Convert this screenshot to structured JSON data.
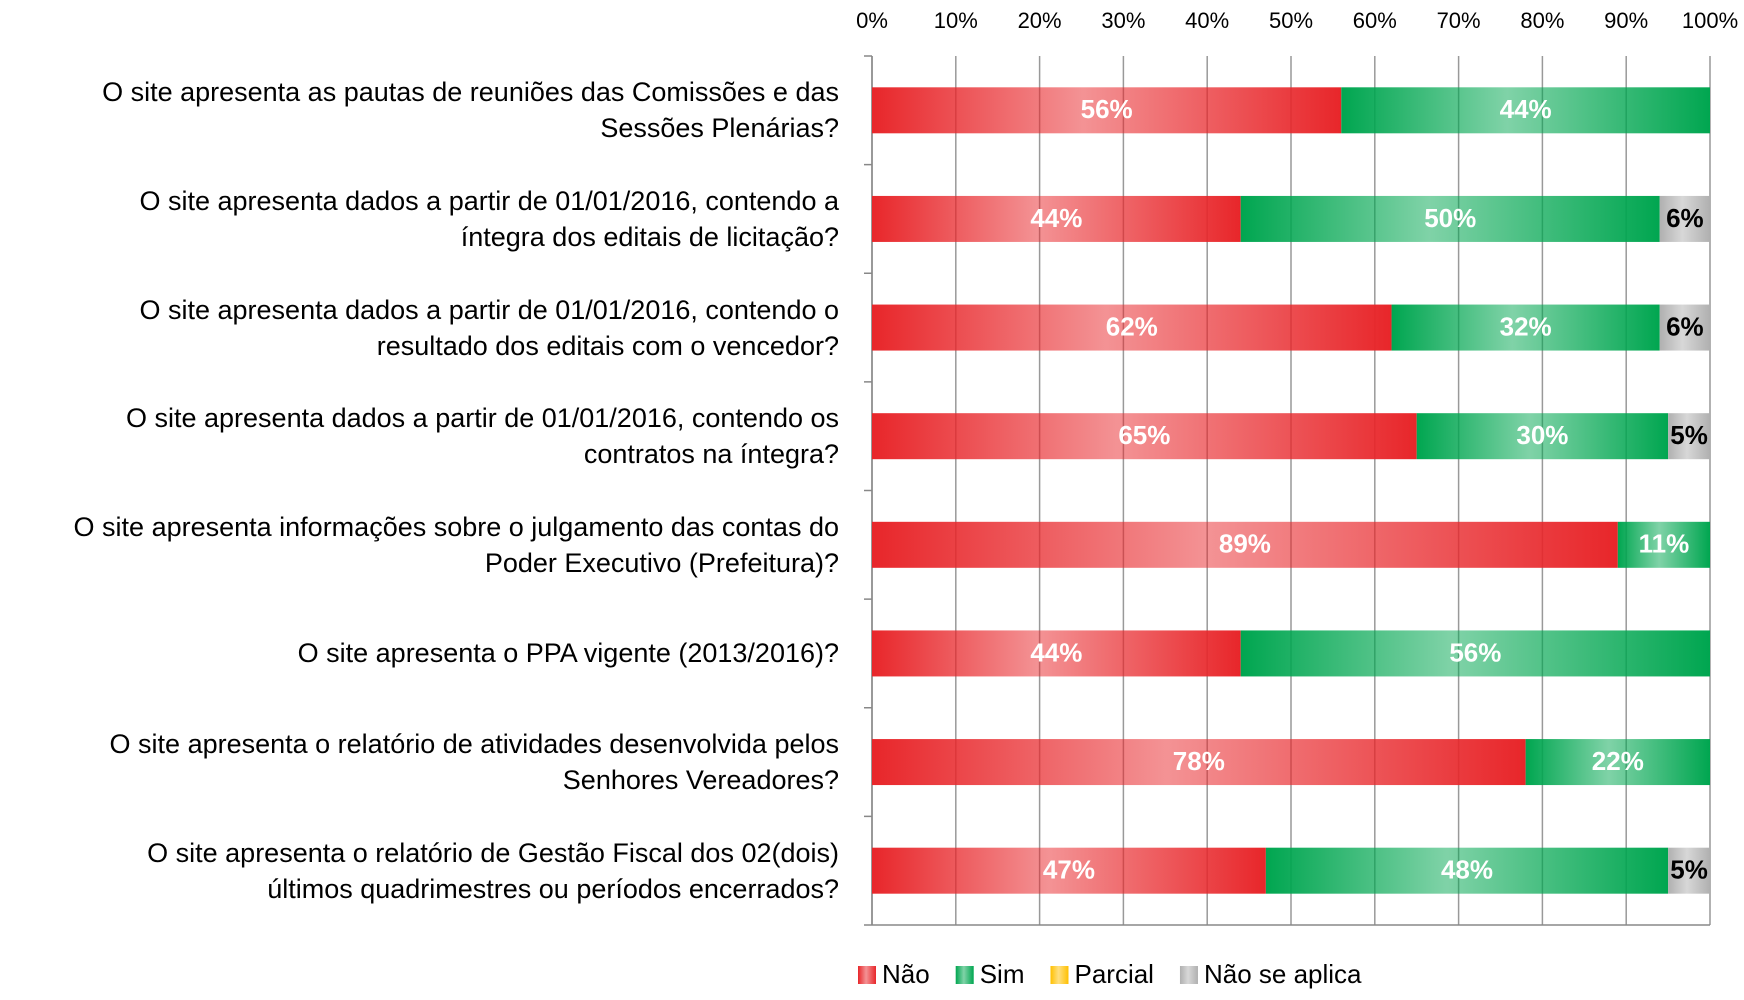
{
  "chart_data": {
    "type": "stacked-bar-horizontal",
    "categories": [
      "O site apresenta as pautas de reuniões das Comissões e das\nSessões Plenárias?",
      "O site apresenta dados a partir de 01/01/2016, contendo a\níntegra dos editais de licitação?",
      "O site apresenta dados a partir de 01/01/2016, contendo o\nresultado dos editais com o vencedor?",
      "O site apresenta dados a partir de 01/01/2016, contendo os\ncontratos na íntegra?",
      "O site apresenta informações sobre o julgamento das contas do\nPoder Executivo (Prefeitura)?",
      "O site apresenta o PPA vigente (2013/2016)?",
      "O site apresenta o relatório de atividades desenvolvida pelos\nSenhores Vereadores?",
      "O site apresenta o relatório de Gestão Fiscal dos 02(dois)\núltimos quadrimestres ou períodos encerrados?"
    ],
    "series": [
      {
        "name": "Não",
        "color": "#e8262a",
        "values": [
          56,
          44,
          62,
          65,
          89,
          44,
          78,
          47
        ],
        "value_labels": [
          "56%",
          "44%",
          "62%",
          "65%",
          "89%",
          "44%",
          "78%",
          "47%"
        ]
      },
      {
        "name": "Sim",
        "color": "#00a650",
        "values": [
          44,
          50,
          32,
          30,
          11,
          56,
          22,
          48
        ],
        "value_labels": [
          "44%",
          "50%",
          "32%",
          "30%",
          "11%",
          "56%",
          "22%",
          "48%"
        ]
      },
      {
        "name": "Parcial",
        "color": "#ffc000",
        "values": [
          0,
          0,
          0,
          0,
          0,
          0,
          0,
          0
        ],
        "value_labels": [
          null,
          null,
          null,
          null,
          null,
          null,
          null,
          null
        ]
      },
      {
        "name": "Não se aplica",
        "color": "#b0b0b0",
        "values": [
          0,
          6,
          6,
          5,
          0,
          0,
          0,
          5
        ],
        "value_labels": [
          null,
          "6%",
          "6%",
          "5%",
          null,
          null,
          null,
          "5%"
        ]
      }
    ],
    "xlim": [
      0,
      100
    ],
    "xticks": [
      {
        "value": 0,
        "label": "0%"
      },
      {
        "value": 10,
        "label": "10%"
      },
      {
        "value": 20,
        "label": "20%"
      },
      {
        "value": 30,
        "label": "30%"
      },
      {
        "value": 40,
        "label": "40%"
      },
      {
        "value": 50,
        "label": "50%"
      },
      {
        "value": 60,
        "label": "60%"
      },
      {
        "value": 70,
        "label": "70%"
      },
      {
        "value": 80,
        "label": "80%"
      },
      {
        "value": 90,
        "label": "90%"
      },
      {
        "value": 100,
        "label": "100%"
      }
    ],
    "grid": true,
    "legend": "bottom"
  }
}
